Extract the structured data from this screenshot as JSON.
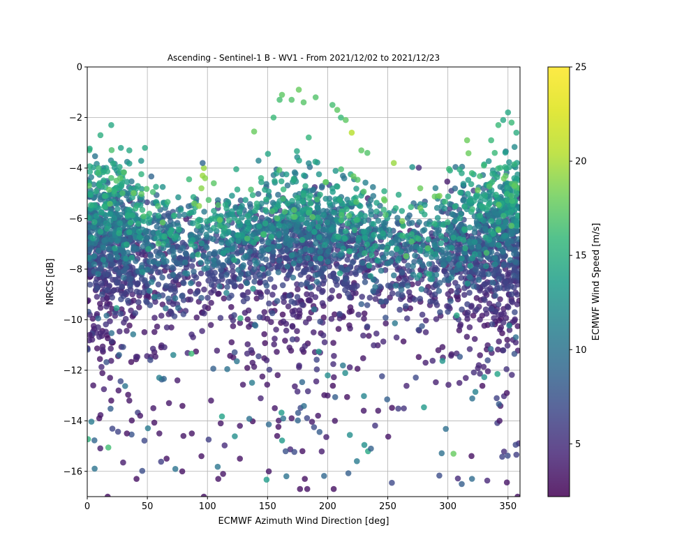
{
  "chart_data": {
    "type": "scatter",
    "title": "Ascending - Sentinel-1 B - WV1 - From 2021/12/02 to 2021/12/23",
    "xlabel": "ECMWF Azimuth Wind Direction [deg]",
    "ylabel": "NRCS [dB]",
    "xlim": [
      0,
      360
    ],
    "ylim": [
      -17,
      0
    ],
    "xticks": [
      0,
      50,
      100,
      150,
      200,
      250,
      300,
      350
    ],
    "yticks": [
      0,
      -2,
      -4,
      -6,
      -8,
      -10,
      -12,
      -14,
      -16
    ],
    "grid": true,
    "colorbar": {
      "label": "ECMWF Wind Speed [m/s]",
      "range": [
        2.2,
        25
      ],
      "ticks": [
        5,
        10,
        15,
        20,
        25
      ],
      "colormap": "viridis"
    },
    "marker_alpha": 0.8,
    "point_count_estimate": 4000,
    "points": [
      [
        2,
        -10.6,
        4
      ],
      [
        5,
        -12.6,
        3.5
      ],
      [
        10,
        -13.9,
        3.2
      ],
      [
        17,
        -17,
        3
      ],
      [
        19,
        -12.3,
        3.5
      ],
      [
        20,
        -13.2,
        3.2
      ],
      [
        26,
        -12.8,
        3.5
      ],
      [
        33,
        -14.5,
        3.2
      ],
      [
        35,
        -13.2,
        3.4
      ],
      [
        41,
        -16.3,
        3
      ],
      [
        44,
        -13.8,
        3.5
      ],
      [
        55,
        -13.5,
        3.6
      ],
      [
        60,
        -14.5,
        3.4
      ],
      [
        66,
        -15.5,
        3.2
      ],
      [
        68,
        -13.3,
        3.5
      ],
      [
        79,
        -16,
        3.2
      ],
      [
        80,
        -14.6,
        3.4
      ],
      [
        87,
        -14.5,
        3.3
      ],
      [
        95,
        -15.4,
        3.2
      ],
      [
        97,
        -17,
        3
      ],
      [
        103,
        -13.2,
        3.5
      ],
      [
        109,
        -16.3,
        3.2
      ],
      [
        111,
        -14.1,
        3.4
      ],
      [
        113,
        -16.1,
        3.3
      ],
      [
        127,
        -14.2,
        3.5
      ],
      [
        127,
        -15.5,
        3.2
      ],
      [
        151,
        -16,
        3.4
      ],
      [
        156,
        -13.5,
        3.5
      ],
      [
        158,
        -14.6,
        3.2
      ],
      [
        170,
        -13.9,
        3.4
      ],
      [
        177,
        -16.7,
        3
      ],
      [
        179,
        -15.2,
        3.2
      ],
      [
        181,
        -16.3,
        3.1
      ],
      [
        183,
        -16.7,
        3.2
      ],
      [
        192,
        -13.8,
        3.5
      ],
      [
        200,
        -13,
        3.6
      ],
      [
        205,
        -16.7,
        3
      ],
      [
        206,
        -14,
        3.4
      ],
      [
        230,
        -13.6,
        3.5
      ],
      [
        236,
        -15.1,
        8.5
      ],
      [
        242,
        -13.6,
        3.4
      ],
      [
        343,
        -14,
        3.5
      ],
      [
        349,
        -12.9,
        3.3
      ],
      [
        358,
        -17,
        3
      ],
      [
        155,
        -2,
        16
      ],
      [
        160,
        -1.3,
        16.5
      ],
      [
        162,
        -1.1,
        17.5
      ],
      [
        170,
        -1.3,
        17
      ],
      [
        176,
        -0.9,
        17.8
      ],
      [
        180,
        -1.4,
        17.2
      ],
      [
        190,
        -1.2,
        17
      ],
      [
        204,
        -1.5,
        16.5
      ],
      [
        208,
        -1.7,
        17.5
      ],
      [
        211,
        -2,
        16
      ],
      [
        215,
        -2.1,
        17.5
      ],
      [
        220,
        -2.6,
        20.5
      ],
      [
        228,
        -3.3,
        17.5
      ],
      [
        233,
        -3.4,
        17
      ],
      [
        255,
        -3.8,
        19.5
      ],
      [
        95,
        -4.8,
        19
      ],
      [
        96,
        -4.3,
        19.5
      ],
      [
        97,
        -4,
        19.5
      ],
      [
        98,
        -4.4,
        19
      ],
      [
        96,
        -3.8,
        9
      ],
      [
        89,
        -5.4,
        18
      ],
      [
        93,
        -5.5,
        19
      ],
      [
        20,
        -2.3,
        14.5
      ],
      [
        11,
        -2.7,
        15
      ],
      [
        28,
        -3.2,
        14
      ],
      [
        35,
        -3.3,
        14.5
      ],
      [
        48,
        -3.2,
        14.5
      ],
      [
        316,
        -2.9,
        18
      ],
      [
        336,
        -2.9,
        16
      ],
      [
        342,
        -2.3,
        16
      ],
      [
        346,
        -2.1,
        14.5
      ],
      [
        350,
        -1.8,
        14.5
      ],
      [
        353,
        -2.2,
        16
      ],
      [
        357,
        -2.6,
        15
      ],
      [
        339,
        -3.4,
        16
      ],
      [
        330,
        -3.9,
        16
      ],
      [
        320,
        -4.2,
        16
      ],
      [
        293,
        -5.1,
        18.5
      ],
      [
        277,
        -4.8,
        18
      ],
      [
        262,
        -6.1,
        18.5
      ]
    ]
  }
}
